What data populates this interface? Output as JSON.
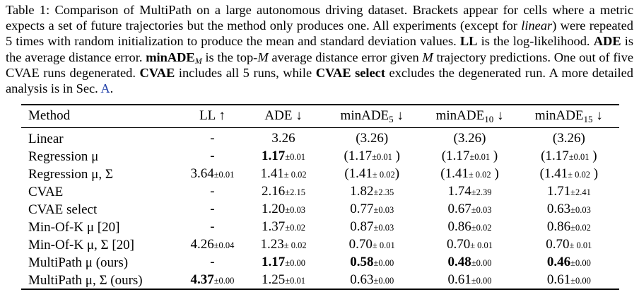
{
  "caption": {
    "label": "Table 1:",
    "s1": " Comparison of MultiPath on a large autonomous driving dataset. Brackets appear for cells where a metric expects a set of future trajectories but the method only produces one. All experiments (except for ",
    "linear": "linear",
    "s2": ") were repeated 5 times with random initialization to produce the mean and standard deviation values. ",
    "ll": "LL",
    "s3": " is the log-likelihood. ",
    "ade": "ADE",
    "s4": " is the average distance error. ",
    "minade": "minADE",
    "minade_sub": "M",
    "s5": " is the top-",
    "m": "M",
    "s6": " average distance error given ",
    "m2": "M",
    "s7": " trajectory predictions. One out of five CVAE runs degenerated. ",
    "cvae": "CVAE",
    "s8": " includes all 5 runs, while ",
    "cvae_select": "CVAE select",
    "s9": " excludes the degenerated run. A more detailed analysis is in Sec. ",
    "sec": "A",
    "s10": "."
  },
  "table": {
    "headers": {
      "method": "Method",
      "ll": "LL ↑",
      "ade": "ADE ↓",
      "m5_main": "minADE",
      "m5_sub": "5",
      "m5_arrow": " ↓",
      "m10_main": "minADE",
      "m10_sub": "10",
      "m10_arrow": " ↓",
      "m15_main": "minADE",
      "m15_sub": "15",
      "m15_arrow": " ↓"
    },
    "rows": [
      {
        "method": "Linear",
        "ll": {
          "pre": "",
          "v": "-",
          "sd": "",
          "post": "",
          "bold": false
        },
        "ade": {
          "pre": "",
          "v": "3.26",
          "sd": "",
          "post": "",
          "bold": false
        },
        "m5": {
          "pre": "(",
          "v": "3.26",
          "sd": "",
          "post": ")",
          "bold": false
        },
        "m10": {
          "pre": "(",
          "v": "3.26",
          "sd": "",
          "post": ")",
          "bold": false
        },
        "m15": {
          "pre": "(",
          "v": "3.26",
          "sd": "",
          "post": ")",
          "bold": false
        }
      },
      {
        "method": "Regression μ",
        "ll": {
          "pre": "",
          "v": "-",
          "sd": "",
          "post": "",
          "bold": false
        },
        "ade": {
          "pre": "",
          "v": "1.17",
          "sd": "±0.01",
          "post": "",
          "bold": true
        },
        "m5": {
          "pre": "(",
          "v": "1.17",
          "sd": "±0.01",
          "post": " )",
          "bold": false
        },
        "m10": {
          "pre": "(",
          "v": "1.17",
          "sd": "±0.01",
          "post": " )",
          "bold": false
        },
        "m15": {
          "pre": "(",
          "v": "1.17",
          "sd": "±0.01",
          "post": " )",
          "bold": false
        }
      },
      {
        "method": "Regression μ, Σ",
        "ll": {
          "pre": "",
          "v": "3.64",
          "sd": "±0.01",
          "post": "",
          "bold": false
        },
        "ade": {
          "pre": "",
          "v": "1.41",
          "sd": "± 0.02",
          "post": "",
          "bold": false
        },
        "m5": {
          "pre": "(",
          "v": "1.41",
          "sd": "± 0.02",
          "post": ")",
          "bold": false
        },
        "m10": {
          "pre": "(",
          "v": "1.41",
          "sd": "± 0.02",
          "post": " )",
          "bold": false
        },
        "m15": {
          "pre": "(",
          "v": "1.41",
          "sd": "± 0.02",
          "post": " )",
          "bold": false
        }
      },
      {
        "method": "CVAE",
        "ll": {
          "pre": "",
          "v": "-",
          "sd": "",
          "post": "",
          "bold": false
        },
        "ade": {
          "pre": "",
          "v": "2.16",
          "sd": "±2.15",
          "post": "",
          "bold": false
        },
        "m5": {
          "pre": "",
          "v": "1.82",
          "sd": "±2.35",
          "post": "",
          "bold": false
        },
        "m10": {
          "pre": "",
          "v": "1.74",
          "sd": "±2.39",
          "post": "",
          "bold": false
        },
        "m15": {
          "pre": "",
          "v": "1.71",
          "sd": "±2.41",
          "post": "",
          "bold": false
        }
      },
      {
        "method": "CVAE select",
        "ll": {
          "pre": "",
          "v": "-",
          "sd": "",
          "post": "",
          "bold": false
        },
        "ade": {
          "pre": "",
          "v": "1.20",
          "sd": "±0.03",
          "post": "",
          "bold": false
        },
        "m5": {
          "pre": "",
          "v": "0.77",
          "sd": "±0.03",
          "post": "",
          "bold": false
        },
        "m10": {
          "pre": "",
          "v": "0.67",
          "sd": "±0.03",
          "post": "",
          "bold": false
        },
        "m15": {
          "pre": "",
          "v": "0.63",
          "sd": "±0.03",
          "post": "",
          "bold": false
        }
      },
      {
        "method": "Min-Of-K μ [20]",
        "ll": {
          "pre": "",
          "v": "-",
          "sd": "",
          "post": "",
          "bold": false
        },
        "ade": {
          "pre": "",
          "v": "1.37",
          "sd": "±0.02",
          "post": "",
          "bold": false
        },
        "m5": {
          "pre": "",
          "v": "0.87",
          "sd": "±0.03",
          "post": "",
          "bold": false
        },
        "m10": {
          "pre": "",
          "v": "0.86",
          "sd": "±0.02",
          "post": "",
          "bold": false
        },
        "m15": {
          "pre": "",
          "v": "0.86",
          "sd": "±0.02",
          "post": "",
          "bold": false
        }
      },
      {
        "method": "Min-Of-K μ, Σ [20]",
        "ll": {
          "pre": "",
          "v": "4.26",
          "sd": "±0.04",
          "post": "",
          "bold": false
        },
        "ade": {
          "pre": "",
          "v": "1.23",
          "sd": "± 0.02",
          "post": "",
          "bold": false
        },
        "m5": {
          "pre": "",
          "v": "0.70",
          "sd": "± 0.01",
          "post": "",
          "bold": false
        },
        "m10": {
          "pre": "",
          "v": "0.70",
          "sd": "± 0.01",
          "post": "",
          "bold": false
        },
        "m15": {
          "pre": "",
          "v": "0.70",
          "sd": "± 0.01",
          "post": "",
          "bold": false
        }
      },
      {
        "method": "MultiPath μ (ours)",
        "ll": {
          "pre": "",
          "v": "-",
          "sd": "",
          "post": "",
          "bold": false
        },
        "ade": {
          "pre": "",
          "v": "1.17",
          "sd": "±0.00",
          "post": "",
          "bold": true
        },
        "m5": {
          "pre": "",
          "v": "0.58",
          "sd": "±0.00",
          "post": "",
          "bold": true
        },
        "m10": {
          "pre": "",
          "v": "0.48",
          "sd": "±0.00",
          "post": "",
          "bold": true
        },
        "m15": {
          "pre": "",
          "v": "0.46",
          "sd": "±0.00",
          "post": "",
          "bold": true
        }
      },
      {
        "method": "MultiPath μ, Σ (ours)",
        "ll": {
          "pre": "",
          "v": "4.37",
          "sd": "±0.00",
          "post": "",
          "bold": true
        },
        "ade": {
          "pre": "",
          "v": "1.25",
          "sd": "±0.01",
          "post": "",
          "bold": false
        },
        "m5": {
          "pre": "",
          "v": "0.63",
          "sd": "±0.00",
          "post": "",
          "bold": false
        },
        "m10": {
          "pre": "",
          "v": "0.61",
          "sd": "±0.00",
          "post": "",
          "bold": false
        },
        "m15": {
          "pre": "",
          "v": "0.61",
          "sd": "±0.00",
          "post": "",
          "bold": false
        }
      }
    ]
  }
}
